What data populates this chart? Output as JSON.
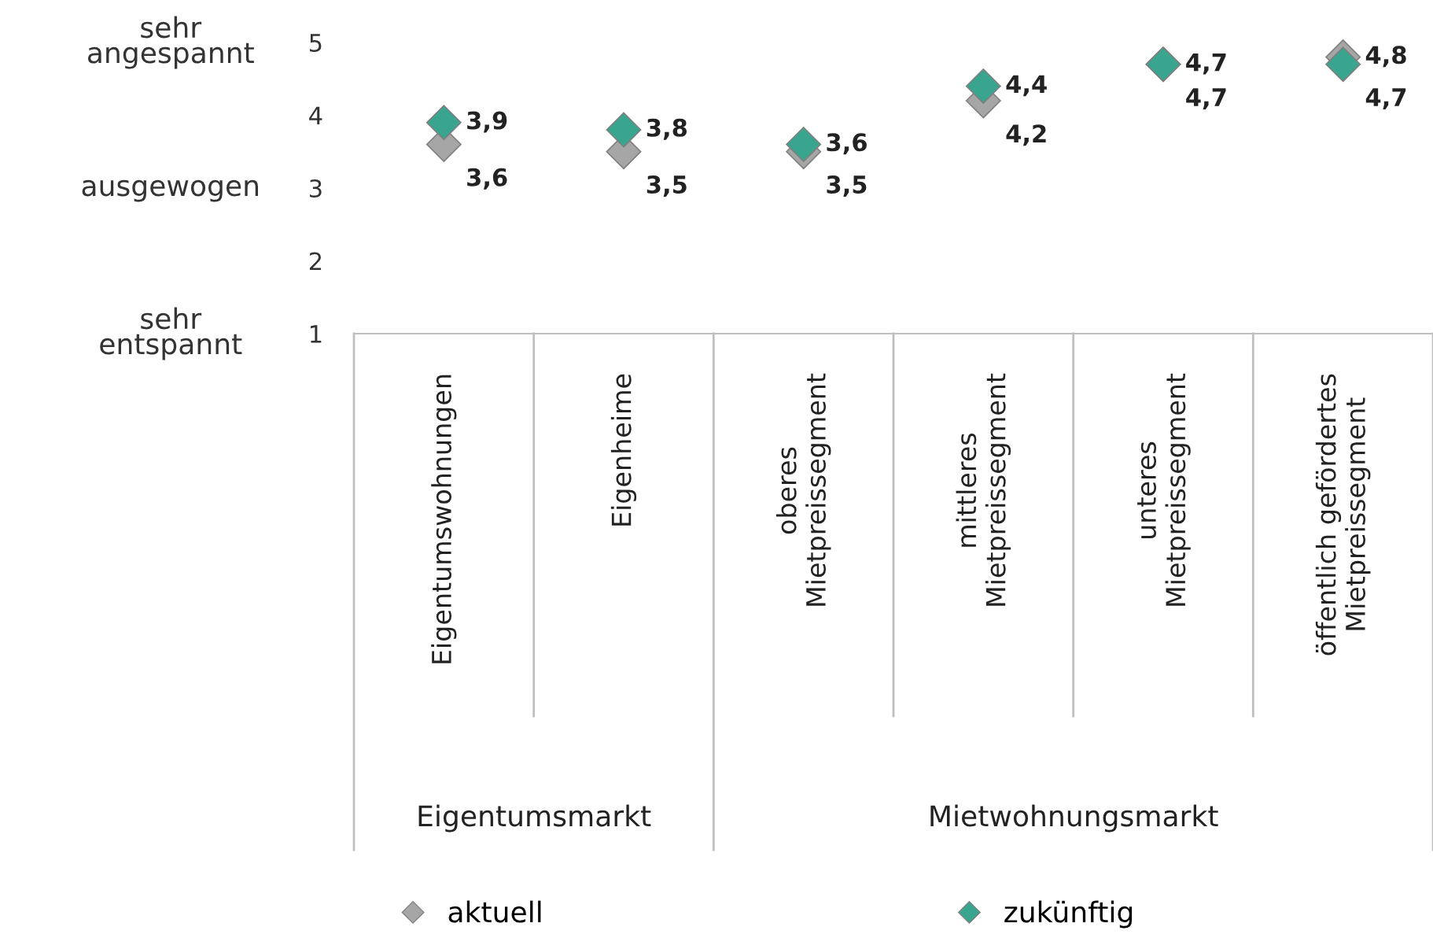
{
  "chart_data": {
    "type": "scatter",
    "categories": [
      "Eigentumswohnungen",
      "Eigenheime",
      "oberes\nMietpreissegment",
      "mittleres\nMietpreissegment",
      "unteres\nMietpreissegment",
      "öffentlich gefördertes\nMietpreissegment"
    ],
    "series": [
      {
        "name": "aktuell",
        "color": "#a6a6a6",
        "values": [
          3.6,
          3.5,
          3.5,
          4.2,
          4.7,
          4.8
        ],
        "value_labels": [
          "3,6",
          "3,5",
          "3,5",
          "4,2",
          "4,7",
          "4,8"
        ]
      },
      {
        "name": "zukünftig",
        "color": "#3aa58f",
        "values": [
          3.9,
          3.8,
          3.6,
          4.4,
          4.7,
          4.7
        ],
        "value_labels": [
          "3,9",
          "3,8",
          "3,6",
          "4,4",
          "4,7",
          "4,7"
        ]
      }
    ],
    "ylim": [
      1,
      5
    ],
    "yticks": [
      1,
      2,
      3,
      4,
      5
    ],
    "grid": false,
    "marker": "diamond",
    "legend": "bottom",
    "annotations": [
      "sehr\nangespannt",
      "ausgewogen",
      "sehr\nentspannt",
      "Eigentumsmarkt",
      "Mietwohnungsmarkt"
    ]
  }
}
